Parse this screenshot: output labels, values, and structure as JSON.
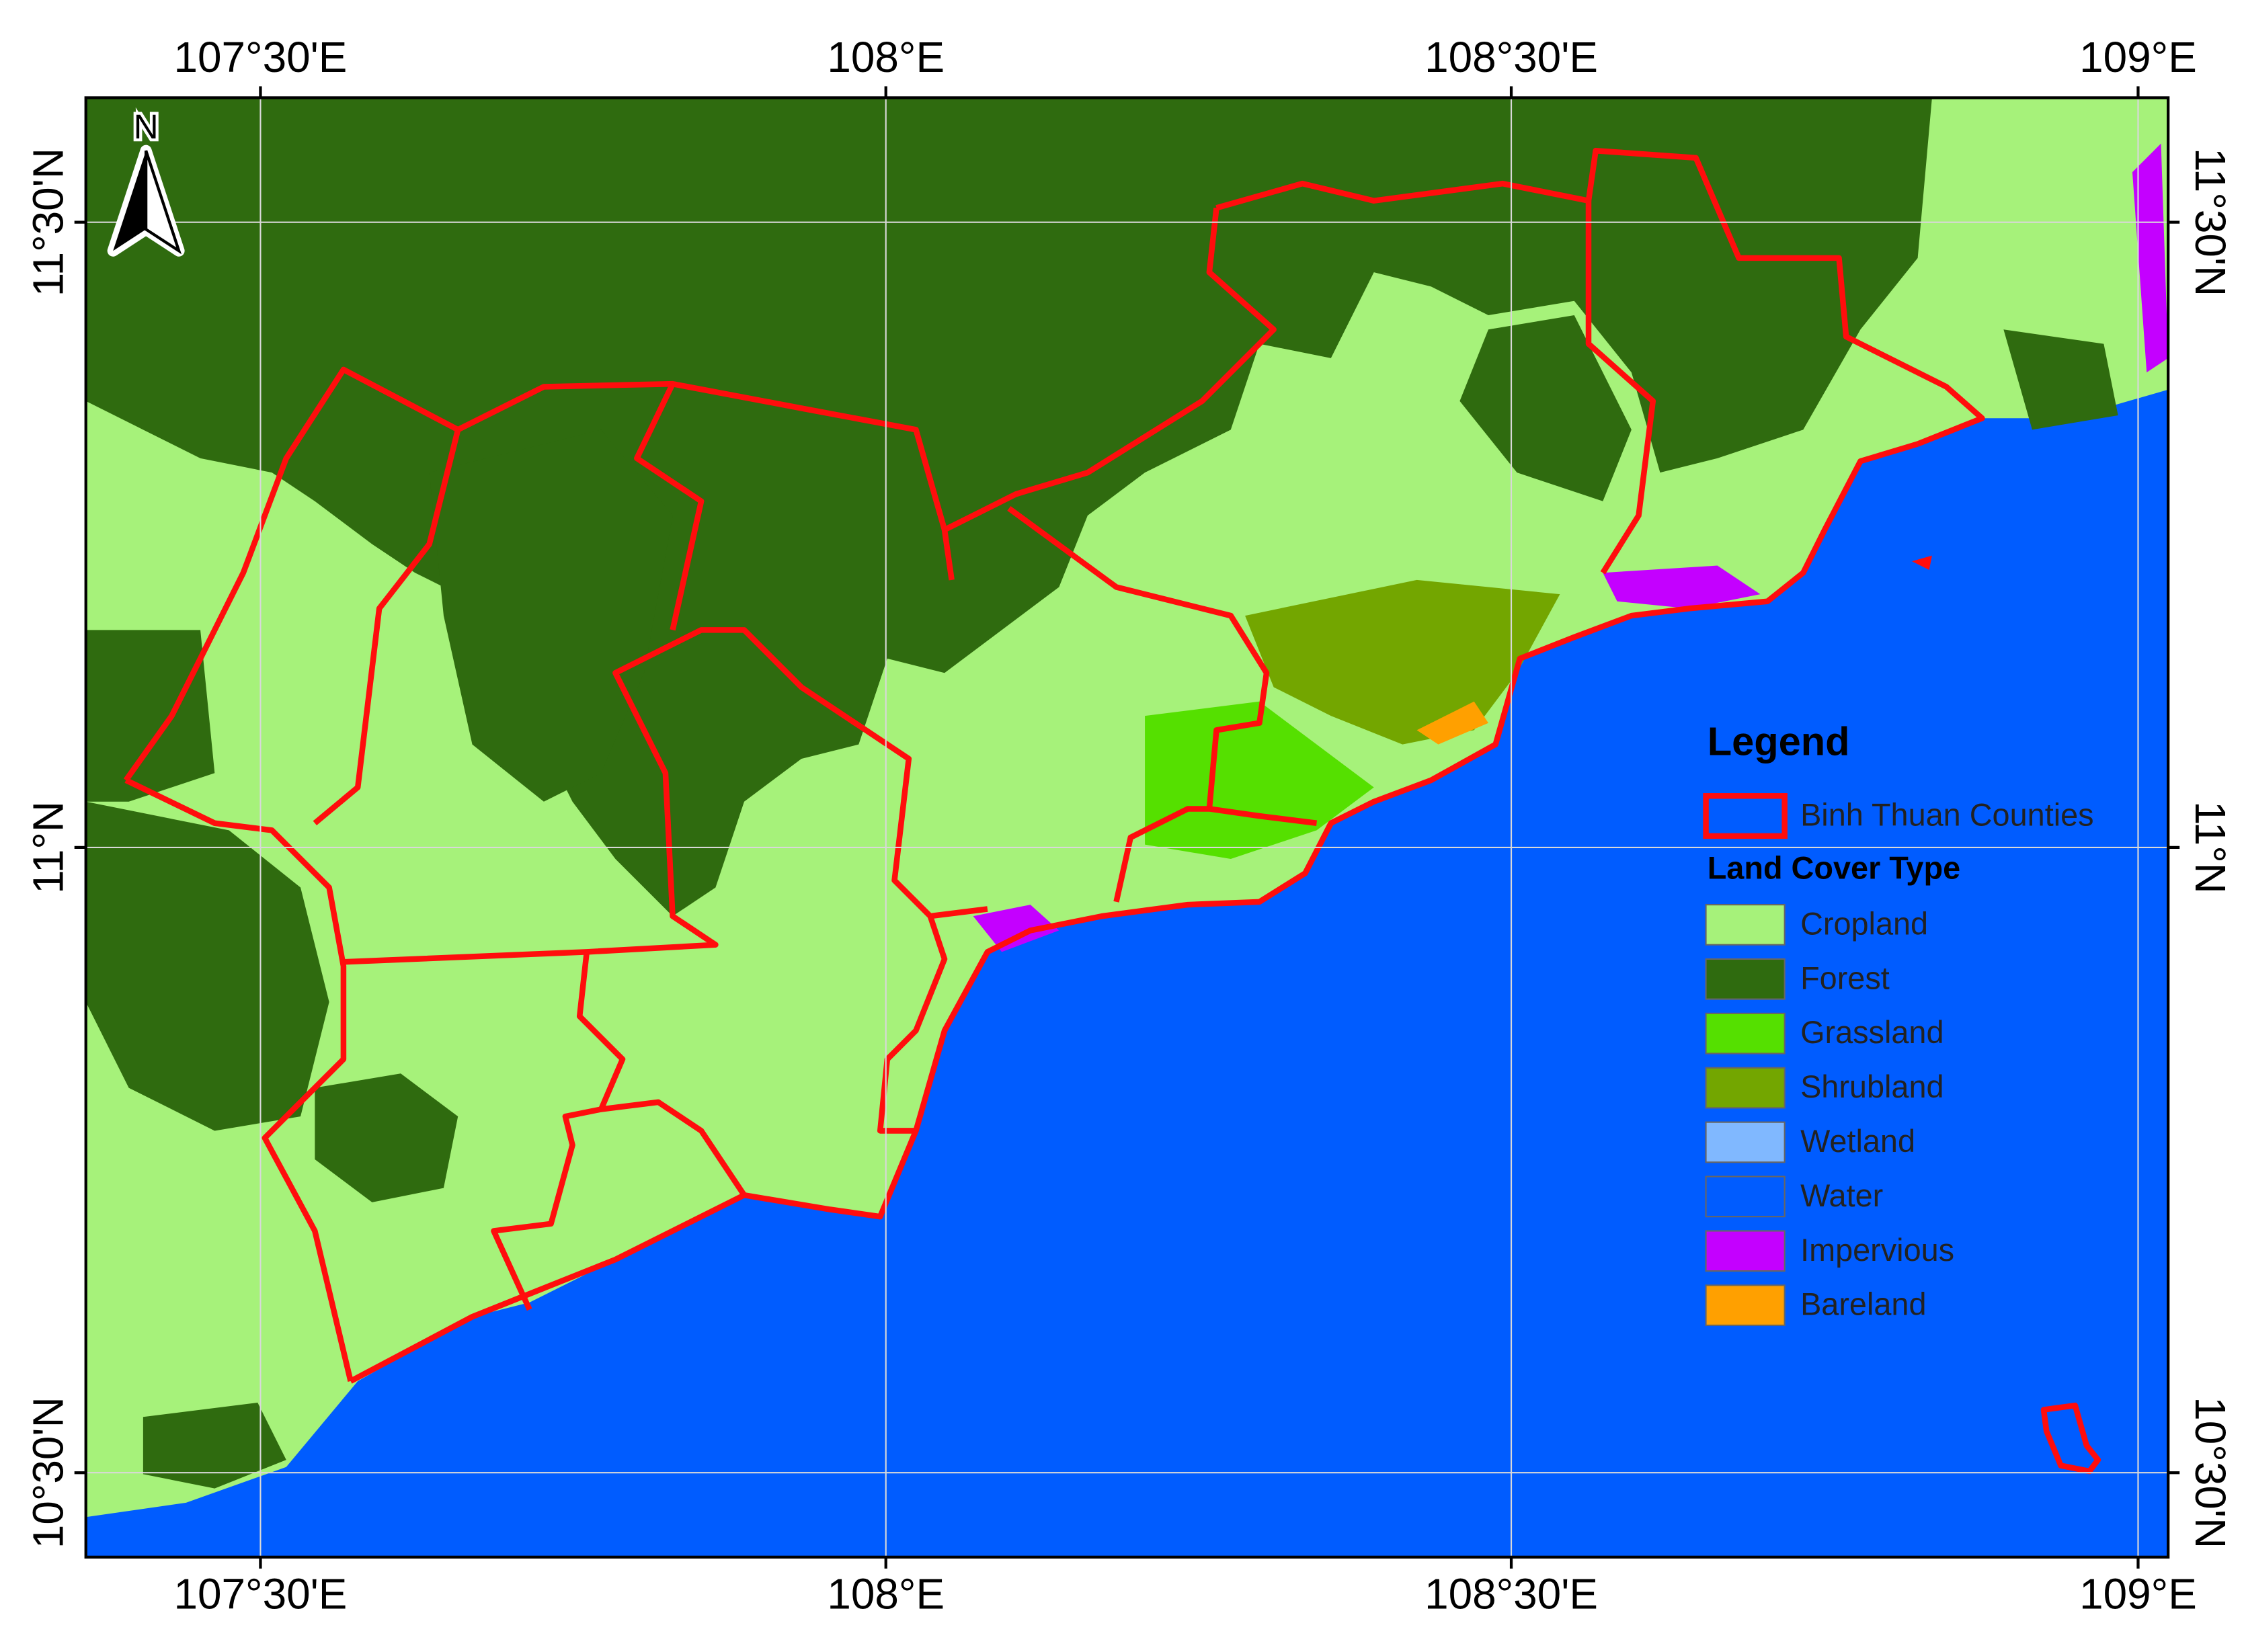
{
  "map": {
    "longitude_labels": [
      "107°30'E",
      "108°E",
      "108°30'E",
      "109°E"
    ],
    "latitude_labels": [
      "11°30'N",
      "11°N",
      "10°30'N"
    ],
    "north_label": "N",
    "legend": {
      "title": "Legend",
      "boundary": "Binh Thuan Counties",
      "section": "Land Cover Type",
      "items": [
        {
          "label": "Cropland",
          "color": "#a6f27a"
        },
        {
          "label": "Forest",
          "color": "#2f6b0f"
        },
        {
          "label": "Grassland",
          "color": "#55e000"
        },
        {
          "label": "Shrubland",
          "color": "#73a600"
        },
        {
          "label": "Wetland",
          "color": "#80b8ff"
        },
        {
          "label": "Water",
          "color": "#005cff"
        },
        {
          "label": "Impervious",
          "color": "#c400ff"
        },
        {
          "label": "Bareland",
          "color": "#ffa000"
        }
      ]
    }
  }
}
